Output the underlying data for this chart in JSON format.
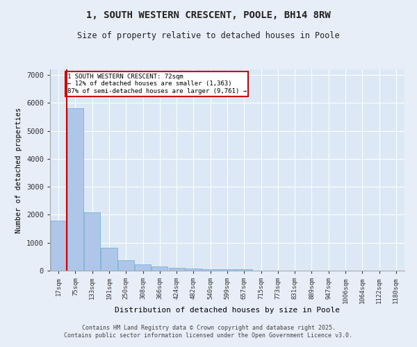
{
  "title_line1": "1, SOUTH WESTERN CRESCENT, POOLE, BH14 8RW",
  "title_line2": "Size of property relative to detached houses in Poole",
  "xlabel": "Distribution of detached houses by size in Poole",
  "ylabel": "Number of detached properties",
  "categories": [
    "17sqm",
    "75sqm",
    "133sqm",
    "191sqm",
    "250sqm",
    "308sqm",
    "366sqm",
    "424sqm",
    "482sqm",
    "540sqm",
    "599sqm",
    "657sqm",
    "715sqm",
    "773sqm",
    "831sqm",
    "889sqm",
    "947sqm",
    "1006sqm",
    "1064sqm",
    "1122sqm",
    "1180sqm"
  ],
  "values": [
    1780,
    5820,
    2080,
    820,
    380,
    220,
    140,
    95,
    75,
    60,
    50,
    40,
    0,
    0,
    0,
    0,
    0,
    0,
    0,
    0,
    0
  ],
  "bar_color": "#aec6e8",
  "bar_edge_color": "#6aaad4",
  "property_line_label": "1 SOUTH WESTERN CRESCENT: 72sqm",
  "annotation_line1": "← 12% of detached houses are smaller (1,363)",
  "annotation_line2": "87% of semi-detached houses are larger (9,761) →",
  "annotation_box_color": "#cc0000",
  "ylim": [
    0,
    7200
  ],
  "yticks": [
    0,
    1000,
    2000,
    3000,
    4000,
    5000,
    6000,
    7000
  ],
  "footer1": "Contains HM Land Registry data © Crown copyright and database right 2025.",
  "footer2": "Contains public sector information licensed under the Open Government Licence v3.0.",
  "bg_color": "#e8eef8",
  "plot_bg_color": "#dce8f5"
}
